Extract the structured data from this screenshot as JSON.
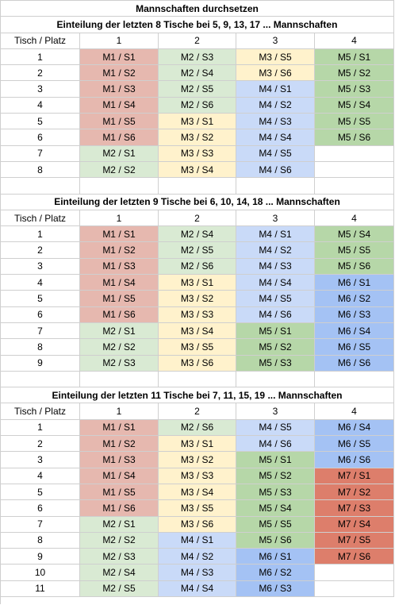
{
  "title": "Mannschaften durchsetzen",
  "colors": {
    "red": "#e6b8af",
    "green": "#d9ead3",
    "yellow": "#fff2cc",
    "blue": "#c9daf8",
    "dgreen": "#b6d7a8",
    "dblue": "#a4c2f4",
    "orange": "#dd7e6b",
    "none": "#ffffff"
  },
  "sections": [
    {
      "heading": "Einteilung der letzten 8 Tische bei 5, 9, 13, 17 ... Mannschaften",
      "header": [
        "Tisch / Platz",
        "1",
        "2",
        "3",
        "4"
      ],
      "rows": [
        {
          "n": "1",
          "cells": [
            {
              "t": "M1 / S1",
              "c": "red"
            },
            {
              "t": "M2 / S3",
              "c": "green"
            },
            {
              "t": "M3 / S5",
              "c": "yellow"
            },
            {
              "t": "M5 / S1",
              "c": "dgreen"
            }
          ]
        },
        {
          "n": "2",
          "cells": [
            {
              "t": "M1 / S2",
              "c": "red"
            },
            {
              "t": "M2 / S4",
              "c": "green"
            },
            {
              "t": "M3 / S6",
              "c": "yellow"
            },
            {
              "t": "M5 / S2",
              "c": "dgreen"
            }
          ]
        },
        {
          "n": "3",
          "cells": [
            {
              "t": "M1 / S3",
              "c": "red"
            },
            {
              "t": "M2 / S5",
              "c": "green"
            },
            {
              "t": "M4 / S1",
              "c": "blue"
            },
            {
              "t": "M5 / S3",
              "c": "dgreen"
            }
          ]
        },
        {
          "n": "4",
          "cells": [
            {
              "t": "M1 / S4",
              "c": "red"
            },
            {
              "t": "M2 / S6",
              "c": "green"
            },
            {
              "t": "M4 / S2",
              "c": "blue"
            },
            {
              "t": "M5 / S4",
              "c": "dgreen"
            }
          ]
        },
        {
          "n": "5",
          "cells": [
            {
              "t": "M1 / S5",
              "c": "red"
            },
            {
              "t": "M3 / S1",
              "c": "yellow"
            },
            {
              "t": "M4 / S3",
              "c": "blue"
            },
            {
              "t": "M5 / S5",
              "c": "dgreen"
            }
          ]
        },
        {
          "n": "6",
          "cells": [
            {
              "t": "M1 / S6",
              "c": "red"
            },
            {
              "t": "M3 / S2",
              "c": "yellow"
            },
            {
              "t": "M4 / S4",
              "c": "blue"
            },
            {
              "t": "M5 / S6",
              "c": "dgreen"
            }
          ]
        },
        {
          "n": "7",
          "cells": [
            {
              "t": "M2 / S1",
              "c": "green"
            },
            {
              "t": "M3 / S3",
              "c": "yellow"
            },
            {
              "t": "M4 / S5",
              "c": "blue"
            },
            {
              "t": "",
              "c": "none"
            }
          ]
        },
        {
          "n": "8",
          "cells": [
            {
              "t": "M2 / S2",
              "c": "green"
            },
            {
              "t": "M3 / S4",
              "c": "yellow"
            },
            {
              "t": "M4 / S6",
              "c": "blue"
            },
            {
              "t": "",
              "c": "none"
            }
          ]
        }
      ]
    },
    {
      "heading": "Einteilung der letzten 9 Tische bei 6, 10, 14, 18 ... Mannschaften",
      "header": [
        "Tisch / Platz",
        "1",
        "2",
        "3",
        "4"
      ],
      "rows": [
        {
          "n": "1",
          "cells": [
            {
              "t": "M1 / S1",
              "c": "red"
            },
            {
              "t": "M2 / S4",
              "c": "green"
            },
            {
              "t": "M4 / S1",
              "c": "blue"
            },
            {
              "t": "M5 / S4",
              "c": "dgreen"
            }
          ]
        },
        {
          "n": "2",
          "cells": [
            {
              "t": "M1 / S2",
              "c": "red"
            },
            {
              "t": "M2 / S5",
              "c": "green"
            },
            {
              "t": "M4 / S2",
              "c": "blue"
            },
            {
              "t": "M5 / S5",
              "c": "dgreen"
            }
          ]
        },
        {
          "n": "3",
          "cells": [
            {
              "t": "M1 / S3",
              "c": "red"
            },
            {
              "t": "M2 / S6",
              "c": "green"
            },
            {
              "t": "M4 / S3",
              "c": "blue"
            },
            {
              "t": "M5 / S6",
              "c": "dgreen"
            }
          ]
        },
        {
          "n": "4",
          "cells": [
            {
              "t": "M1 / S4",
              "c": "red"
            },
            {
              "t": "M3 / S1",
              "c": "yellow"
            },
            {
              "t": "M4 / S4",
              "c": "blue"
            },
            {
              "t": "M6 / S1",
              "c": "dblue"
            }
          ]
        },
        {
          "n": "5",
          "cells": [
            {
              "t": "M1 / S5",
              "c": "red"
            },
            {
              "t": "M3 / S2",
              "c": "yellow"
            },
            {
              "t": "M4 / S5",
              "c": "blue"
            },
            {
              "t": "M6 / S2",
              "c": "dblue"
            }
          ]
        },
        {
          "n": "6",
          "cells": [
            {
              "t": "M1 / S6",
              "c": "red"
            },
            {
              "t": "M3 / S3",
              "c": "yellow"
            },
            {
              "t": "M4 / S6",
              "c": "blue"
            },
            {
              "t": "M6 / S3",
              "c": "dblue"
            }
          ]
        },
        {
          "n": "7",
          "cells": [
            {
              "t": "M2 / S1",
              "c": "green"
            },
            {
              "t": "M3 / S4",
              "c": "yellow"
            },
            {
              "t": "M5 / S1",
              "c": "dgreen"
            },
            {
              "t": "M6 / S4",
              "c": "dblue"
            }
          ]
        },
        {
          "n": "8",
          "cells": [
            {
              "t": "M2 / S2",
              "c": "green"
            },
            {
              "t": "M3 / S5",
              "c": "yellow"
            },
            {
              "t": "M5 / S2",
              "c": "dgreen"
            },
            {
              "t": "M6 / S5",
              "c": "dblue"
            }
          ]
        },
        {
          "n": "9",
          "cells": [
            {
              "t": "M2 / S3",
              "c": "green"
            },
            {
              "t": "M3 / S6",
              "c": "yellow"
            },
            {
              "t": "M5 / S3",
              "c": "dgreen"
            },
            {
              "t": "M6 / S6",
              "c": "dblue"
            }
          ]
        }
      ]
    },
    {
      "heading": "Einteilung der letzten 11 Tische bei 7, 11, 15, 19 ... Mannschaften",
      "header": [
        "Tisch / Platz",
        "1",
        "2",
        "3",
        "4"
      ],
      "rows": [
        {
          "n": "1",
          "cells": [
            {
              "t": "M1 / S1",
              "c": "red"
            },
            {
              "t": "M2 / S6",
              "c": "green"
            },
            {
              "t": "M4 / S5",
              "c": "blue"
            },
            {
              "t": "M6 / S4",
              "c": "dblue"
            }
          ]
        },
        {
          "n": "2",
          "cells": [
            {
              "t": "M1 / S2",
              "c": "red"
            },
            {
              "t": "M3 / S1",
              "c": "yellow"
            },
            {
              "t": "M4 / S6",
              "c": "blue"
            },
            {
              "t": "M6 / S5",
              "c": "dblue"
            }
          ]
        },
        {
          "n": "3",
          "cells": [
            {
              "t": "M1 / S3",
              "c": "red"
            },
            {
              "t": "M3 / S2",
              "c": "yellow"
            },
            {
              "t": "M5 / S1",
              "c": "dgreen"
            },
            {
              "t": "M6 / S6",
              "c": "dblue"
            }
          ]
        },
        {
          "n": "4",
          "cells": [
            {
              "t": "M1 / S4",
              "c": "red"
            },
            {
              "t": "M3 / S3",
              "c": "yellow"
            },
            {
              "t": "M5 / S2",
              "c": "dgreen"
            },
            {
              "t": "M7 / S1",
              "c": "orange"
            }
          ]
        },
        {
          "n": "5",
          "cells": [
            {
              "t": "M1 / S5",
              "c": "red"
            },
            {
              "t": "M3 / S4",
              "c": "yellow"
            },
            {
              "t": "M5 / S3",
              "c": "dgreen"
            },
            {
              "t": "M7 / S2",
              "c": "orange"
            }
          ]
        },
        {
          "n": "6",
          "cells": [
            {
              "t": "M1 / S6",
              "c": "red"
            },
            {
              "t": "M3 / S5",
              "c": "yellow"
            },
            {
              "t": "M5 / S4",
              "c": "dgreen"
            },
            {
              "t": "M7 / S3",
              "c": "orange"
            }
          ]
        },
        {
          "n": "7",
          "cells": [
            {
              "t": "M2 / S1",
              "c": "green"
            },
            {
              "t": "M3 / S6",
              "c": "yellow"
            },
            {
              "t": "M5 / S5",
              "c": "dgreen"
            },
            {
              "t": "M7 / S4",
              "c": "orange"
            }
          ]
        },
        {
          "n": "8",
          "cells": [
            {
              "t": "M2 / S2",
              "c": "green"
            },
            {
              "t": "M4 / S1",
              "c": "blue"
            },
            {
              "t": "M5 / S6",
              "c": "dgreen"
            },
            {
              "t": "M7 / S5",
              "c": "orange"
            }
          ]
        },
        {
          "n": "9",
          "cells": [
            {
              "t": "M2 / S3",
              "c": "green"
            },
            {
              "t": "M4 / S2",
              "c": "blue"
            },
            {
              "t": "M6 / S1",
              "c": "dblue"
            },
            {
              "t": "M7 / S6",
              "c": "orange"
            }
          ]
        },
        {
          "n": "10",
          "cells": [
            {
              "t": "M2 / S4",
              "c": "green"
            },
            {
              "t": "M4 / S3",
              "c": "blue"
            },
            {
              "t": "M6 / S2",
              "c": "dblue"
            },
            {
              "t": "",
              "c": "none"
            }
          ]
        },
        {
          "n": "11",
          "cells": [
            {
              "t": "M2 / S5",
              "c": "green"
            },
            {
              "t": "M4 / S4",
              "c": "blue"
            },
            {
              "t": "M6 / S3",
              "c": "dblue"
            },
            {
              "t": "",
              "c": "none"
            }
          ]
        }
      ]
    }
  ]
}
